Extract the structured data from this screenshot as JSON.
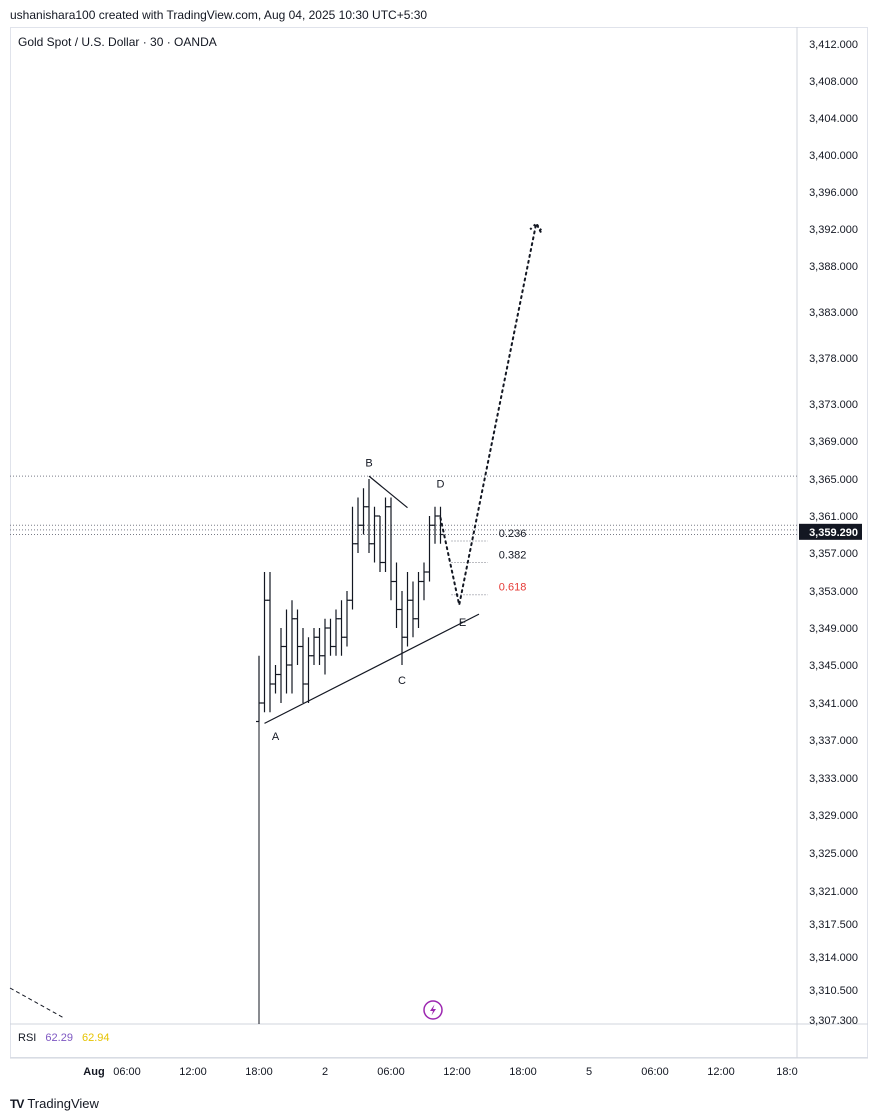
{
  "header": {
    "credit": "ushanishara100 created with TradingView.com, Aug 04, 2025 10:30 UTC+5:30"
  },
  "symbol": {
    "title": "Gold Spot / U.S. Dollar · 30 · OANDA"
  },
  "rsi": {
    "label": "RSI",
    "value1": "62.29",
    "value2": "62.94"
  },
  "footer": {
    "logo_icon": "TV",
    "logo_text": "TradingView"
  },
  "colors": {
    "rsi_line": "#7e57c2",
    "rsi_ma": "#e6c300",
    "fib_618": "#e53935",
    "price_tag": "#131722"
  },
  "chart_data": {
    "type": "candlestick",
    "y_ticks": [
      {
        "label": "3,412.000",
        "value": 3412
      },
      {
        "label": "3,408.000",
        "value": 3408
      },
      {
        "label": "3,404.000",
        "value": 3404
      },
      {
        "label": "3,400.000",
        "value": 3400
      },
      {
        "label": "3,396.000",
        "value": 3396
      },
      {
        "label": "3,392.000",
        "value": 3392
      },
      {
        "label": "3,388.000",
        "value": 3388
      },
      {
        "label": "3,383.000",
        "value": 3383
      },
      {
        "label": "3,378.000",
        "value": 3378
      },
      {
        "label": "3,373.000",
        "value": 3373
      },
      {
        "label": "3,369.000",
        "value": 3369
      },
      {
        "label": "3,365.000",
        "value": 3365
      },
      {
        "label": "3,361.000",
        "value": 3361
      },
      {
        "label": "3,357.000",
        "value": 3357
      },
      {
        "label": "3,353.000",
        "value": 3353
      },
      {
        "label": "3,349.000",
        "value": 3349
      },
      {
        "label": "3,345.000",
        "value": 3345
      },
      {
        "label": "3,341.000",
        "value": 3341
      },
      {
        "label": "3,337.000",
        "value": 3337
      },
      {
        "label": "3,333.000",
        "value": 3333
      },
      {
        "label": "3,329.000",
        "value": 3329
      },
      {
        "label": "3,325.000",
        "value": 3325
      },
      {
        "label": "3,321.000",
        "value": 3321
      },
      {
        "label": "3,317.500",
        "value": 3317.5
      },
      {
        "label": "3,314.000",
        "value": 3314
      },
      {
        "label": "3,310.500",
        "value": 3310.5
      },
      {
        "label": "3,307.300",
        "value": 3307.3
      }
    ],
    "x_ticks": [
      {
        "label": "Aug",
        "t": -15
      },
      {
        "label": "06:00",
        "t": -12
      },
      {
        "label": "12:00",
        "t": -6
      },
      {
        "label": "18:00",
        "t": 0
      },
      {
        "label": "2",
        "t": 6
      },
      {
        "label": "06:00",
        "t": 12
      },
      {
        "label": "12:00",
        "t": 18
      },
      {
        "label": "18:00",
        "t": 24
      },
      {
        "label": "5",
        "t": 30
      },
      {
        "label": "06:00",
        "t": 36
      },
      {
        "label": "12:00",
        "t": 42
      },
      {
        "label": "18:0",
        "t": 48
      }
    ],
    "last_price": "3,359.290",
    "last_price_value": 3359.29,
    "candles": [
      {
        "t": 0.0,
        "o": 3339,
        "h": 3346,
        "l": 3339,
        "c": 3341
      },
      {
        "t": 0.5,
        "o": 3341,
        "h": 3355,
        "l": 3340,
        "c": 3352
      },
      {
        "t": 1.0,
        "o": 3352,
        "h": 3355,
        "l": 3340,
        "c": 3343
      },
      {
        "t": 1.5,
        "o": 3343,
        "h": 3345,
        "l": 3342,
        "c": 3344
      },
      {
        "t": 2.0,
        "o": 3344,
        "h": 3349,
        "l": 3341,
        "c": 3347
      },
      {
        "t": 2.5,
        "o": 3347,
        "h": 3351,
        "l": 3342,
        "c": 3345
      },
      {
        "t": 3.0,
        "o": 3345,
        "h": 3352,
        "l": 3342,
        "c": 3350
      },
      {
        "t": 3.5,
        "o": 3350,
        "h": 3351,
        "l": 3345,
        "c": 3347
      },
      {
        "t": 4.0,
        "o": 3347,
        "h": 3349,
        "l": 3341,
        "c": 3343
      },
      {
        "t": 4.5,
        "o": 3343,
        "h": 3348,
        "l": 3341,
        "c": 3346
      },
      {
        "t": 5.0,
        "o": 3346,
        "h": 3349,
        "l": 3345,
        "c": 3348
      },
      {
        "t": 5.5,
        "o": 3348,
        "h": 3349,
        "l": 3345,
        "c": 3346
      },
      {
        "t": 6.0,
        "o": 3346,
        "h": 3350,
        "l": 3344,
        "c": 3349
      },
      {
        "t": 6.5,
        "o": 3349,
        "h": 3350,
        "l": 3346,
        "c": 3347
      },
      {
        "t": 7.0,
        "o": 3347,
        "h": 3351,
        "l": 3346,
        "c": 3350
      },
      {
        "t": 7.5,
        "o": 3350,
        "h": 3352,
        "l": 3346,
        "c": 3348
      },
      {
        "t": 8.0,
        "o": 3348,
        "h": 3353,
        "l": 3347,
        "c": 3352
      },
      {
        "t": 8.5,
        "o": 3352,
        "h": 3362,
        "l": 3351,
        "c": 3358
      },
      {
        "t": 9.0,
        "o": 3358,
        "h": 3363,
        "l": 3357,
        "c": 3360
      },
      {
        "t": 9.5,
        "o": 3360,
        "h": 3364,
        "l": 3359,
        "c": 3362
      },
      {
        "t": 10.0,
        "o": 3362,
        "h": 3365,
        "l": 3357,
        "c": 3358
      },
      {
        "t": 10.5,
        "o": 3358,
        "h": 3362,
        "l": 3356,
        "c": 3361
      },
      {
        "t": 11.0,
        "o": 3361,
        "h": 3361,
        "l": 3355,
        "c": 3356
      },
      {
        "t": 11.5,
        "o": 3356,
        "h": 3363,
        "l": 3355,
        "c": 3362
      },
      {
        "t": 12.0,
        "o": 3362,
        "h": 3363,
        "l": 3352,
        "c": 3354
      },
      {
        "t": 12.5,
        "o": 3354,
        "h": 3356,
        "l": 3349,
        "c": 3351
      },
      {
        "t": 13.0,
        "o": 3351,
        "h": 3353,
        "l": 3345,
        "c": 3348
      },
      {
        "t": 13.5,
        "o": 3348,
        "h": 3355,
        "l": 3347,
        "c": 3352
      },
      {
        "t": 14.0,
        "o": 3352,
        "h": 3354,
        "l": 3348,
        "c": 3350
      },
      {
        "t": 14.5,
        "o": 3350,
        "h": 3355,
        "l": 3349,
        "c": 3354
      },
      {
        "t": 15.0,
        "o": 3354,
        "h": 3356,
        "l": 3352,
        "c": 3355
      },
      {
        "t": 15.5,
        "o": 3355,
        "h": 3361,
        "l": 3354,
        "c": 3360
      },
      {
        "t": 16.0,
        "o": 3360,
        "h": 3362,
        "l": 3358,
        "c": 3361
      },
      {
        "t": 16.5,
        "o": 3361,
        "h": 3362,
        "l": 3358,
        "c": 3359
      }
    ],
    "triangle_lines": [
      {
        "name": "upper",
        "from": {
          "t": 10.0,
          "p": 3365.3
        },
        "to": {
          "t": 13.5,
          "p": 3361.9
        }
      },
      {
        "name": "lower",
        "from": {
          "t": 0.5,
          "p": 3338.8
        },
        "to": {
          "t": 20.0,
          "p": 3350.5
        }
      }
    ],
    "wave_labels": [
      {
        "label": "A",
        "t": 1.5,
        "p": 3337.0
      },
      {
        "label": "B",
        "t": 10.0,
        "p": 3366.3
      },
      {
        "label": "C",
        "t": 13.0,
        "p": 3343.0
      },
      {
        "label": "D",
        "t": 16.5,
        "p": 3364.1
      },
      {
        "label": "E",
        "t": 18.5,
        "p": 3349.2
      }
    ],
    "fib_levels": [
      {
        "label": "0.236",
        "price": 3358.3,
        "color": "#131722"
      },
      {
        "label": "0.382",
        "price": 3356.0,
        "color": "#131722"
      },
      {
        "label": "0.618",
        "price": 3352.6,
        "color": "#e53935"
      }
    ],
    "fib_line_t_range": [
      17.5,
      20.8
    ],
    "forecast_path": [
      {
        "t": 16.5,
        "p": 3360.8
      },
      {
        "t": 18.2,
        "p": 3351.5
      },
      {
        "t": 25.2,
        "p": 3392.6
      },
      {
        "t": 25.6,
        "p": 3391.7
      }
    ],
    "horizontal_dotted_levels": [
      3365.3,
      3360.0,
      3359.5,
      3359.0
    ]
  }
}
